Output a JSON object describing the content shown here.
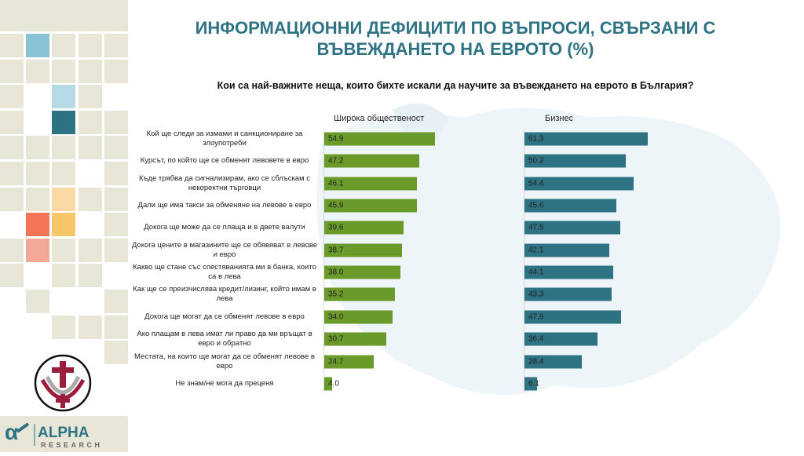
{
  "title": "ИНФОРМАЦИОННИ ДЕФИЦИТИ ПО ВЪПРОСИ, СВЪРЗАНИ С ВЪВЕЖДАНЕТО НА ЕВРОТО (%)",
  "logo_text": "ALPHA RESEARCH",
  "colors": {
    "title": "#2e7384",
    "public": "#6a9a2a",
    "business": "#2e7384",
    "tile": "#e8e6d6"
  },
  "chart_data": {
    "type": "bar",
    "orientation": "horizontal",
    "title": "Кои са най-важните неща, които бихте искали да научите за въвеждането на еврото в България?",
    "categories": [
      "Кой ще следи за измами и санкциониране за злоупотреби",
      "Курсът, по който ще се обменят левовете в евро",
      "Къде трябва да сигнализирам, ако се сблъскам с некоректни търговци",
      "Дали ще има такси за обменяне на левове в евро",
      "Докога ще може да се плаща и в двете валути",
      "Докога цените в магазините ще се обявяват в левове и евро",
      "Какво ще стане със спестяванията ми в банка, които са в лева",
      "Как ще се преизчислява кредит/лизинг, който имам в лева",
      "Докога ще могат да се обменят левове в евро",
      "Ако плащам в лева имат ли право да ми връщат в евро и обратно",
      "Местата, на които ще могат да се обменят левове в евро",
      "Не знам/не мога да преценя"
    ],
    "series": [
      {
        "name": "Широка общественост",
        "values": [
          54.9,
          47.2,
          46.1,
          45.9,
          39.6,
          38.7,
          38.0,
          35.2,
          34.0,
          30.7,
          24.7,
          4.0
        ],
        "labels": [
          "54.9",
          "47.2",
          "46.1",
          "45.9",
          "39.6",
          "38.7",
          "38.0",
          "35.2",
          "34.0",
          "30.7",
          "24.7",
          "4.0"
        ]
      },
      {
        "name": "Бизнес",
        "values": [
          61.3,
          50.2,
          54.4,
          45.6,
          47.5,
          42.1,
          44.1,
          43.3,
          47.9,
          36.4,
          28.4,
          6.1
        ],
        "labels": [
          "61.3",
          "50.2",
          "54.4",
          "45.6",
          "47.5",
          "42.1",
          "44.1",
          "43.3",
          "47.9",
          "36.4",
          "28.4",
          "6.1"
        ]
      }
    ]
  }
}
